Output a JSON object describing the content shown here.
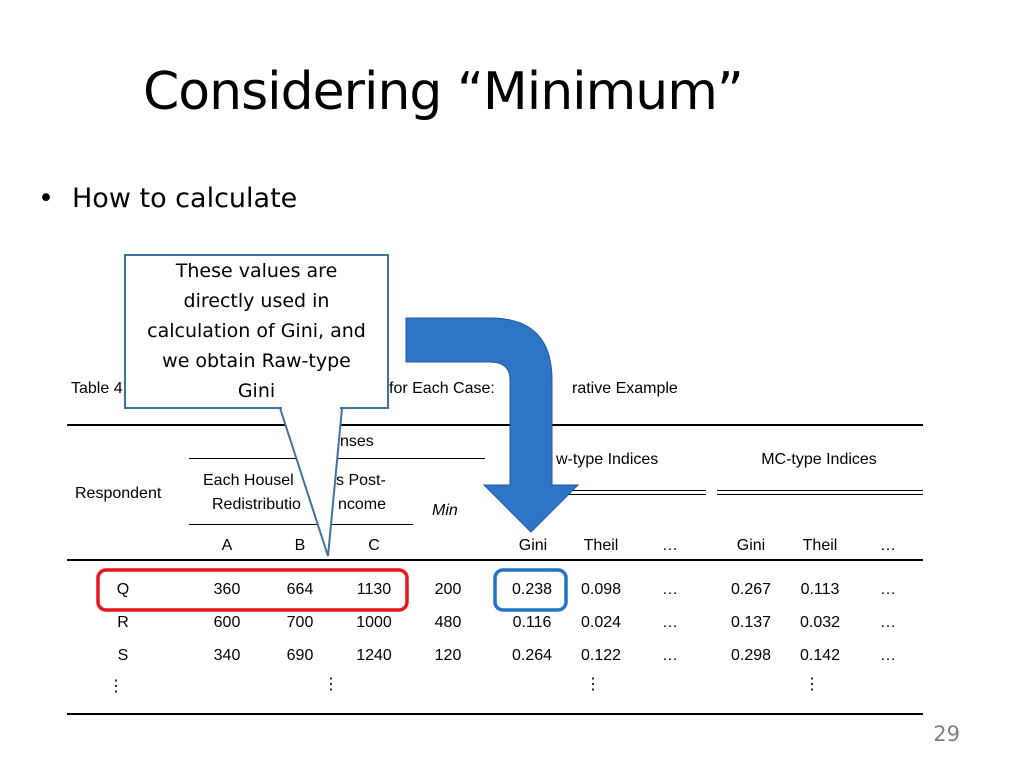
{
  "slide": {
    "title": "Considering “Minimum”",
    "bullet_marker": "•",
    "bullet_text": "How to calculate",
    "page_number": "29"
  },
  "table": {
    "caption": "Table 4",
    "caption_visible_mid": "for Each Case:",
    "caption_visible_end": "rative Example",
    "header_responses": "nses",
    "header_respondent": "Respondent",
    "header_income_line1": "Each Housel",
    "header_income_line1b": "s Post-",
    "header_income_line2": "Redistributio",
    "header_income_line2b": "ncome",
    "header_min": "Min",
    "header_raw": "w-type Indices",
    "header_mc": "MC-type Indices",
    "sub_a": "A",
    "sub_b": "B",
    "sub_c": "C",
    "sub_gini_raw": "Gini",
    "sub_theil_raw": "Theil",
    "sub_more_raw": "…",
    "sub_gini_mc": "Gini",
    "sub_theil_mc": "Theil",
    "sub_more_mc": "…",
    "rows": [
      {
        "resp": "Q",
        "a": "360",
        "b": "664",
        "c": "1130",
        "min": "200",
        "gini_raw": "0.238",
        "theil_raw": "0.098",
        "more_raw": "…",
        "gini_mc": "0.267",
        "theil_mc": "0.113",
        "more_mc": "…"
      },
      {
        "resp": "R",
        "a": "600",
        "b": "700",
        "c": "1000",
        "min": "480",
        "gini_raw": "0.116",
        "theil_raw": "0.024",
        "more_raw": "…",
        "gini_mc": "0.137",
        "theil_mc": "0.032",
        "more_mc": "…"
      },
      {
        "resp": "S",
        "a": "340",
        "b": "690",
        "c": "1240",
        "min": "120",
        "gini_raw": "0.264",
        "theil_raw": "0.122",
        "more_raw": "…",
        "gini_mc": "0.298",
        "theil_mc": "0.142",
        "more_mc": "…"
      }
    ],
    "vertical_ellipsis": "⋮"
  },
  "callout": {
    "lines": [
      "These values are",
      "directly used in",
      "calculation of Gini, and",
      "we obtain Raw-type",
      "Gini"
    ]
  },
  "colors": {
    "arrow": "#2E75C8",
    "highlight_row": "#E8151B",
    "highlight_cell": "#1F74C6",
    "callout_border": "#41719C"
  }
}
